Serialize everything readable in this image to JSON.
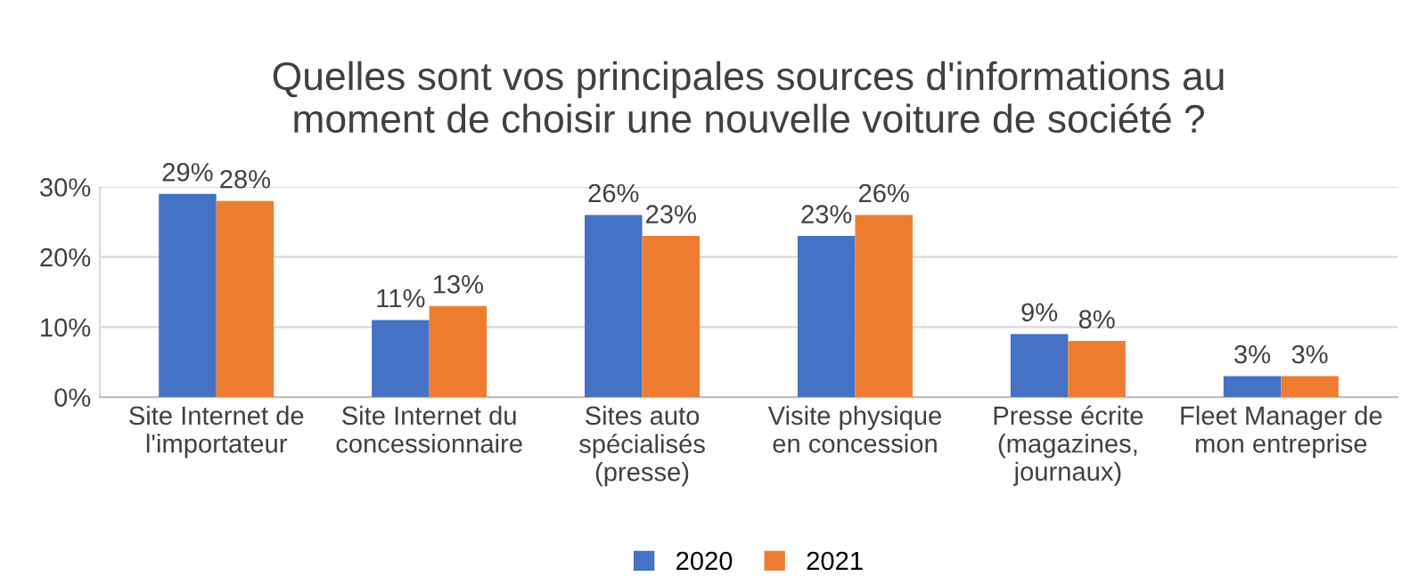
{
  "chart_data": {
    "type": "bar",
    "title": "Quelles sont vos principales sources d'informations au\nmoment de choisir une nouvelle voiture de société ?",
    "categories": [
      "Site Internet de\nl'importateur",
      "Site Internet du\nconcessionnaire",
      "Sites auto\nspécialisés\n(presse)",
      "Visite physique\nen concession",
      "Presse écrite\n(magazines,\njournaux)",
      "Fleet Manager de\nmon entreprise"
    ],
    "series": [
      {
        "name": "2020",
        "color": "#4472c4",
        "values": [
          29,
          11,
          26,
          23,
          9,
          3
        ],
        "value_labels": [
          "29%",
          "11%",
          "26%",
          "23%",
          "9%",
          "3%"
        ]
      },
      {
        "name": "2021",
        "color": "#ed7d31",
        "values": [
          28,
          13,
          23,
          26,
          8,
          3
        ],
        "value_labels": [
          "28%",
          "13%",
          "23%",
          "26%",
          "8%",
          "3%"
        ]
      }
    ],
    "ylim": [
      0,
      30
    ],
    "yticks": [
      {
        "value": 0,
        "label": "0%"
      },
      {
        "value": 10,
        "label": "10%"
      },
      {
        "value": 20,
        "label": "20%"
      },
      {
        "value": 30,
        "label": "30%"
      }
    ],
    "grid": "y",
    "legend": "bottom"
  }
}
